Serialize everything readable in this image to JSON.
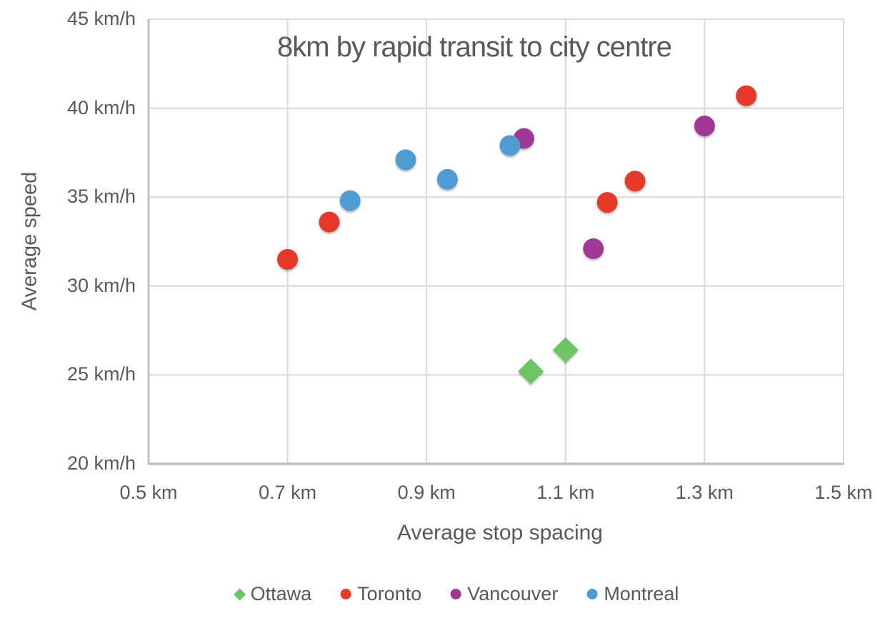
{
  "chart_data": {
    "type": "scatter",
    "title": "8km by rapid transit to city centre",
    "xlabel": "Average stop spacing",
    "ylabel": "Average speed",
    "xlim": [
      0.5,
      1.5
    ],
    "ylim": [
      20,
      45
    ],
    "grid": true,
    "legend_position": "bottom",
    "x_ticks": [
      {
        "value": 0.5,
        "label": "0.5 km"
      },
      {
        "value": 0.7,
        "label": "0.7 km"
      },
      {
        "value": 0.9,
        "label": "0.9 km"
      },
      {
        "value": 1.1,
        "label": "1.1 km"
      },
      {
        "value": 1.3,
        "label": "1.3 km"
      },
      {
        "value": 1.5,
        "label": "1.5 km"
      }
    ],
    "y_ticks": [
      {
        "value": 45,
        "label": "45 km/h"
      },
      {
        "value": 40,
        "label": "40 km/h"
      },
      {
        "value": 35,
        "label": "35 km/h"
      },
      {
        "value": 30,
        "label": "30 km/h"
      },
      {
        "value": 25,
        "label": "25 km/h"
      },
      {
        "value": 20,
        "label": "20 km/h"
      }
    ],
    "series": [
      {
        "name": "Ottawa",
        "marker": "diamond",
        "color": "#6CC463",
        "points": [
          {
            "x": 1.05,
            "y": 25.2
          },
          {
            "x": 1.1,
            "y": 26.4
          }
        ]
      },
      {
        "name": "Toronto",
        "marker": "circle",
        "color": "#E8392B",
        "points": [
          {
            "x": 0.7,
            "y": 31.5
          },
          {
            "x": 0.76,
            "y": 33.6
          },
          {
            "x": 1.16,
            "y": 34.7
          },
          {
            "x": 1.2,
            "y": 35.9
          },
          {
            "x": 1.36,
            "y": 40.7
          }
        ]
      },
      {
        "name": "Vancouver",
        "marker": "circle",
        "color": "#A03795",
        "points": [
          {
            "x": 1.04,
            "y": 38.3
          },
          {
            "x": 1.14,
            "y": 32.1
          },
          {
            "x": 1.3,
            "y": 39.0
          }
        ]
      },
      {
        "name": "Montreal",
        "marker": "circle",
        "color": "#4F9CD5",
        "points": [
          {
            "x": 0.79,
            "y": 34.8
          },
          {
            "x": 0.87,
            "y": 37.1
          },
          {
            "x": 0.93,
            "y": 36.0
          },
          {
            "x": 1.02,
            "y": 37.9
          }
        ]
      }
    ]
  },
  "colors": {
    "text": "#595959",
    "gridline": "#D9D9D9",
    "axis_line": "#BFBFBF",
    "background": "#FFFFFF"
  }
}
